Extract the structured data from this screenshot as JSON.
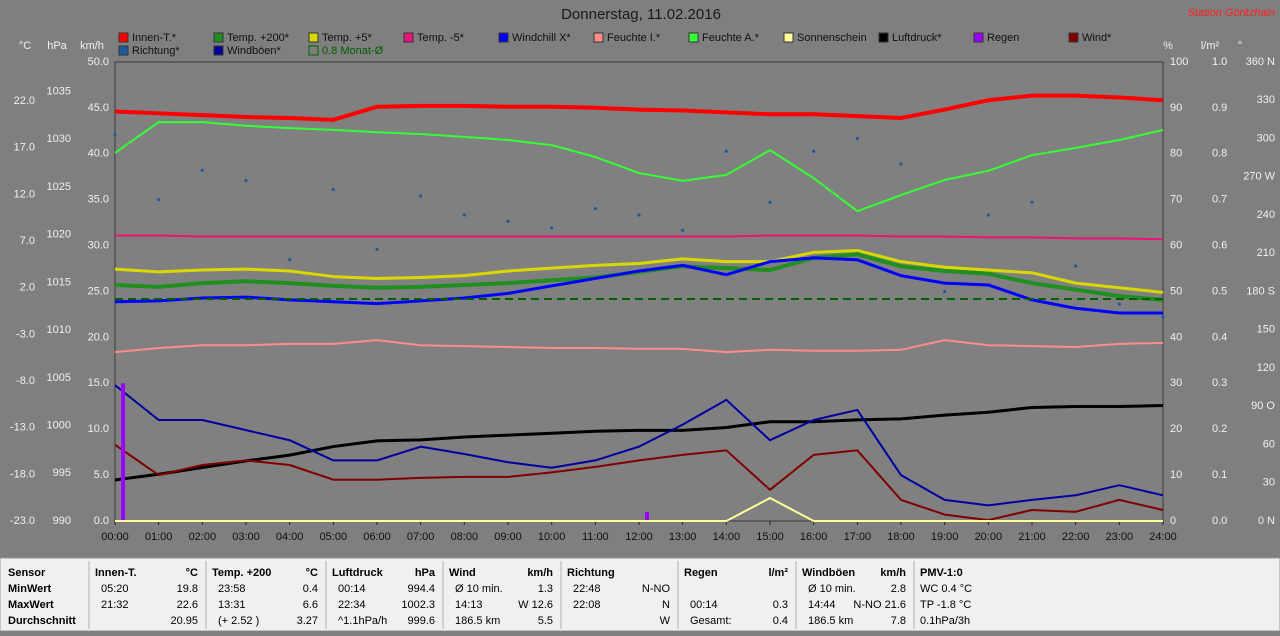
{
  "chart_data": {
    "type": "line",
    "title": "Donnerstag, 11.02.2016",
    "annotation": "Station Göritzhain",
    "categories": [
      "00:00",
      "01:00",
      "02:00",
      "03:00",
      "04:00",
      "05:00",
      "06:00",
      "07:00",
      "08:00",
      "09:00",
      "10:00",
      "11:00",
      "12:00",
      "13:00",
      "14:00",
      "15:00",
      "16:00",
      "17:00",
      "18:00",
      "19:00",
      "20:00",
      "21:00",
      "22:00",
      "23:00",
      "24:00"
    ],
    "axes": [
      {
        "unit": "°C",
        "side": "left",
        "lim": [
          -23,
          26.2
        ],
        "ticks": [
          {
            "value": -23,
            "label": "-23.0"
          },
          {
            "value": -18,
            "label": "-18.0"
          },
          {
            "value": -13,
            "label": "-13.0"
          },
          {
            "value": -8,
            "label": "-8.0"
          },
          {
            "value": -3,
            "label": "-3.0"
          },
          {
            "value": 2,
            "label": "2.0"
          },
          {
            "value": 7,
            "label": "7.0"
          },
          {
            "value": 12,
            "label": "12.0"
          },
          {
            "value": 17,
            "label": "17.0"
          },
          {
            "value": 22,
            "label": "22.0"
          }
        ]
      },
      {
        "unit": "hPa",
        "side": "left",
        "lim": [
          990,
          1038.1
        ],
        "ticks": [
          990,
          995,
          1000,
          1005,
          1010,
          1015,
          1020,
          1025,
          1030,
          1035
        ]
      },
      {
        "unit": "km/h",
        "side": "left",
        "lim": [
          0,
          50
        ],
        "ticks": [
          {
            "value": 0,
            "label": "0.0"
          },
          {
            "value": 5,
            "label": "5.0"
          },
          {
            "value": 10,
            "label": "10.0"
          },
          {
            "value": 15,
            "label": "15.0"
          },
          {
            "value": 20,
            "label": "20.0"
          },
          {
            "value": 25,
            "label": "25.0"
          },
          {
            "value": 30,
            "label": "30.0"
          },
          {
            "value": 35,
            "label": "35.0"
          },
          {
            "value": 40,
            "label": "40.0"
          },
          {
            "value": 45,
            "label": "45.0"
          },
          {
            "value": 50,
            "label": "50.0"
          }
        ]
      },
      {
        "unit": "%",
        "side": "right",
        "lim": [
          0,
          100
        ],
        "ticks": [
          0,
          10,
          20,
          30,
          40,
          50,
          60,
          70,
          80,
          90,
          100
        ]
      },
      {
        "unit": "l/m²",
        "side": "right",
        "lim": [
          0,
          1
        ],
        "ticks": [
          {
            "value": 0,
            "label": "0.0"
          },
          0.1,
          0.2,
          0.3,
          0.4,
          0.5,
          0.6,
          0.7,
          0.8,
          0.9,
          {
            "value": 1,
            "label": "1.0"
          }
        ]
      },
      {
        "unit": "°",
        "side": "right",
        "lim": [
          0,
          360
        ],
        "ticks": [
          {
            "value": 0,
            "label": "0 N"
          },
          30,
          60,
          {
            "value": 90,
            "label": "90 O"
          },
          120,
          150,
          {
            "value": 180,
            "label": "180 S"
          },
          210,
          240,
          {
            "value": 270,
            "label": "270 W"
          },
          300,
          330,
          {
            "value": 360,
            "label": "360 N"
          }
        ]
      }
    ],
    "series": [
      {
        "name": "Innen-T.*",
        "color": "#ff0000",
        "axis": 0,
        "style": "line",
        "values": [
          20.9,
          20.7,
          20.5,
          20.3,
          20.2,
          20.0,
          21.4,
          21.5,
          21.5,
          21.4,
          21.4,
          21.3,
          21.1,
          21.0,
          20.8,
          20.6,
          20.6,
          20.4,
          20.2,
          21.1,
          22.1,
          22.6,
          22.6,
          22.4,
          22.1
        ]
      },
      {
        "name": "Temp. +200*",
        "color": "#1f8f1f",
        "axis": 0,
        "style": "line",
        "values": [
          2.3,
          2.1,
          2.5,
          2.7,
          2.5,
          2.2,
          2.0,
          2.1,
          2.3,
          2.5,
          2.8,
          3.1,
          3.7,
          4.3,
          4.1,
          3.9,
          5.2,
          5.6,
          4.3,
          3.8,
          3.5,
          2.5,
          1.8,
          1.1,
          0.7
        ]
      },
      {
        "name": "Temp. +5*",
        "color": "#d8d800",
        "axis": 0,
        "style": "line",
        "values": [
          4.0,
          3.7,
          3.9,
          4.0,
          3.8,
          3.2,
          3.0,
          3.1,
          3.3,
          3.8,
          4.1,
          4.4,
          4.6,
          5.1,
          4.8,
          4.8,
          5.8,
          6.0,
          4.8,
          4.2,
          3.9,
          3.6,
          2.5,
          2.0,
          1.5
        ]
      },
      {
        "name": "Temp. -5*",
        "color": "#ee1177",
        "axis": 0,
        "style": "line",
        "values": [
          7.6,
          7.6,
          7.5,
          7.5,
          7.5,
          7.5,
          7.5,
          7.5,
          7.5,
          7.5,
          7.5,
          7.5,
          7.5,
          7.5,
          7.5,
          7.6,
          7.6,
          7.6,
          7.5,
          7.5,
          7.4,
          7.4,
          7.3,
          7.3,
          7.2
        ]
      },
      {
        "name": "Windchill X*",
        "color": "#0000ff",
        "axis": 0,
        "style": "line",
        "values": [
          0.5,
          0.6,
          0.9,
          1.0,
          0.7,
          0.5,
          0.3,
          0.6,
          0.9,
          1.4,
          2.2,
          3.0,
          3.8,
          4.4,
          3.4,
          4.8,
          5.2,
          5.0,
          3.3,
          2.5,
          2.3,
          0.7,
          -0.2,
          -0.7,
          -0.7
        ]
      },
      {
        "name": "Feuchte I.*",
        "color": "#ff8c8c",
        "axis": 3,
        "style": "line",
        "values": [
          36.8,
          37.7,
          38.3,
          38.3,
          38.6,
          38.6,
          39.4,
          38.3,
          38.1,
          37.9,
          37.7,
          37.7,
          37.5,
          37.5,
          36.8,
          37.3,
          37.1,
          37.1,
          37.3,
          39.4,
          38.3,
          38.1,
          37.9,
          38.6,
          38.8
        ]
      },
      {
        "name": "Feuchte A.*",
        "color": "#33ff33",
        "axis": 3,
        "style": "line",
        "values": [
          80.2,
          86.9,
          86.9,
          86.1,
          85.6,
          85.2,
          84.7,
          84.3,
          83.7,
          83.0,
          81.9,
          79.3,
          75.8,
          74.1,
          75.4,
          80.8,
          74.7,
          67.5,
          71.0,
          74.3,
          76.3,
          79.7,
          81.3,
          83.0,
          85.2
        ]
      },
      {
        "name": "Sonnenschein",
        "color": "#ffff99",
        "axis": 4,
        "style": "line",
        "values": [
          0,
          0,
          0,
          0,
          0,
          0,
          0,
          0,
          0,
          0,
          0,
          0,
          0,
          0,
          0,
          0.05,
          0,
          0,
          0,
          0,
          0,
          0,
          0,
          0,
          0
        ]
      },
      {
        "name": "Luftdruck*",
        "color": "#000000",
        "axis": 1,
        "style": "line",
        "values": [
          994.3,
          994.9,
          995.6,
          996.3,
          996.9,
          997.8,
          998.4,
          998.5,
          998.8,
          999.0,
          999.2,
          999.4,
          999.5,
          999.5,
          999.8,
          1000.4,
          1000.4,
          1000.6,
          1000.7,
          1001.1,
          1001.4,
          1001.9,
          1002.0,
          1002.0,
          1002.1
        ]
      },
      {
        "name": "Regen",
        "color": "#9900ff",
        "axis": 4,
        "style": "bars",
        "values": [
          0.3,
          0,
          0,
          0,
          0,
          0,
          0,
          0,
          0,
          0,
          0,
          0,
          0.02,
          0,
          0,
          0,
          0,
          0,
          0,
          0,
          0,
          0,
          0,
          0,
          0
        ]
      },
      {
        "name": "Wind*",
        "color": "#800000",
        "axis": 2,
        "style": "line",
        "values": [
          8.3,
          5.0,
          6.1,
          6.6,
          6.1,
          4.5,
          4.5,
          4.7,
          4.8,
          4.8,
          5.3,
          5.9,
          6.6,
          7.2,
          7.7,
          3.4,
          7.2,
          7.7,
          2.3,
          0.7,
          0.1,
          1.2,
          1.0,
          2.3,
          1.2
        ]
      },
      {
        "name": "Richtung*",
        "color": "#1f5a9e",
        "axis": 5,
        "style": "dots",
        "values": [
          303,
          252,
          275,
          267,
          205,
          260,
          213,
          255,
          240,
          235,
          230,
          245,
          240,
          228,
          290,
          250,
          290,
          300,
          280,
          180,
          240,
          250,
          200,
          170,
          160
        ]
      },
      {
        "name": "Windböen*",
        "color": "#0000a0",
        "axis": 2,
        "style": "line",
        "values": [
          14.8,
          11.0,
          11.0,
          9.9,
          8.8,
          6.6,
          6.6,
          8.1,
          7.3,
          6.4,
          5.8,
          6.6,
          8.1,
          10.5,
          13.2,
          8.8,
          11.0,
          12.1,
          5.0,
          2.3,
          1.7,
          2.3,
          2.8,
          3.9,
          2.8
        ]
      },
      {
        "name": "0.8 Monat-Ø",
        "color": "#006000",
        "axis": 0,
        "style": "dashed",
        "reference": 0.8
      }
    ]
  },
  "stats": {
    "row_labels": [
      "Sensor",
      "MinWert",
      "MaxWert",
      "Durchschnitt"
    ],
    "columns": [
      {
        "header": "Innen-T.",
        "unit": "°C",
        "rows": [
          [
            "05:20",
            "19.8"
          ],
          [
            "21:32",
            "22.6"
          ],
          [
            null,
            "20.95"
          ]
        ]
      },
      {
        "header": "Temp. +200",
        "unit": "°C",
        "rows": [
          [
            "23:58",
            "0.4"
          ],
          [
            "13:31",
            "6.6"
          ],
          [
            "(+ 2.52 )",
            "3.27"
          ]
        ]
      },
      {
        "header": "Luftdruck",
        "unit": "hPa",
        "rows": [
          [
            "00:14",
            "994.4"
          ],
          [
            "22:34",
            "1002.3"
          ],
          [
            "^1.1hPa/h",
            "999.6"
          ]
        ]
      },
      {
        "header": "Wind",
        "unit": "km/h",
        "rows": [
          [
            "Ø 10 min.",
            "1.3"
          ],
          [
            "14:13",
            "W 12.6"
          ],
          [
            "186.5 km",
            "5.5"
          ]
        ]
      },
      {
        "header": "Richtung",
        "rows": [
          [
            "22:48",
            "N-NO"
          ],
          [
            "22:08",
            "N"
          ],
          [
            null,
            "W"
          ]
        ]
      },
      {
        "header": "Regen",
        "unit": "l/m²",
        "rows": [
          [
            null,
            null
          ],
          [
            "00:14",
            "0.3"
          ],
          [
            "Gesamt:",
            "0.4"
          ]
        ]
      },
      {
        "header": "Windböen",
        "unit": "km/h",
        "rows": [
          [
            "Ø 10 min.",
            "2.8"
          ],
          [
            "14:44",
            "N-NO 21.6"
          ],
          [
            "186.5 km",
            "7.8"
          ]
        ]
      },
      {
        "header": "PMV-1:0",
        "rows": [
          [
            "WC 0.4 °C"
          ],
          [
            "TP -1.8 °C"
          ],
          [
            "0.1hPa/3h"
          ]
        ]
      }
    ]
  }
}
